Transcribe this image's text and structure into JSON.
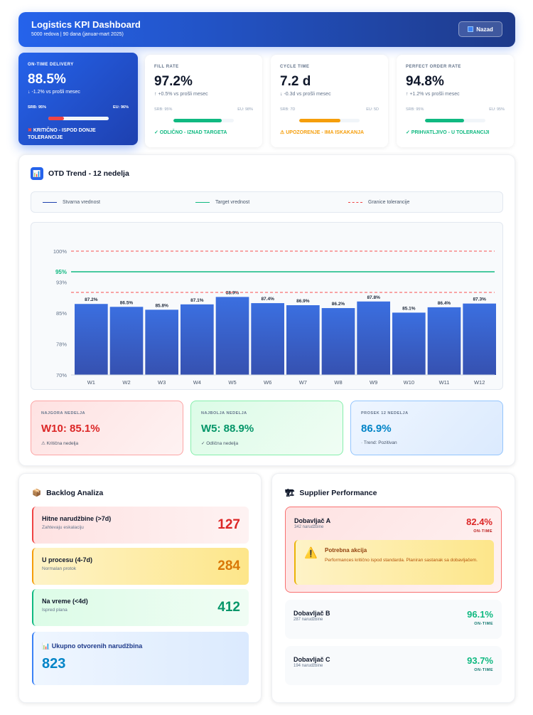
{
  "header": {
    "title": "Logistics KPI Dashboard",
    "subtitle": "5000 redova | 90 dana (januar-mart 2025)",
    "back_label": "Nazad"
  },
  "kpis": [
    {
      "label": "ON-TIME DELIVERY",
      "value": "88.5%",
      "change": "↓ -1.2% vs prošli mesec",
      "srb": "SRB: 95%",
      "eu": "EU: 96%",
      "progress": 0.26,
      "color": "#ef4444",
      "status": "KRITIČNO - ISPOD DONJE TOLERANCIJE",
      "status_icon": "✖"
    },
    {
      "label": "FILL RATE",
      "value": "97.2%",
      "change": "↑ +0.5% vs prošli mesec",
      "srb": "SRB: 95%",
      "eu": "EU: 98%",
      "progress": 0.8,
      "color": "#10b981",
      "status": "✓ ODLIČNO - IZNAD TARGETA"
    },
    {
      "label": "CYCLE TIME",
      "value": "7.2 d",
      "change": "↓ -0.3d vs prošli mesec",
      "srb": "SRB: 7D",
      "eu": "EU: 5D",
      "progress": 0.68,
      "color": "#f59e0b",
      "status": "UPOZORENJE - IMA ISKAKANJA",
      "status_icon": "⚠"
    },
    {
      "label": "PERFECT ORDER RATE",
      "value": "94.8%",
      "change": "↑ +1.2% vs prošli mesec",
      "srb": "SRB: 95%",
      "eu": "EU: 95%",
      "progress": 0.65,
      "color": "#10b981",
      "status": "✓ PRIHVATLJIVO - U TOLERANCIJI"
    }
  ],
  "trend": {
    "title": "OTD Trend - 12 nedelja",
    "icon": "📊",
    "legend": [
      "Stvarna vrednost",
      "Target vrednost",
      "Granice tolerancije"
    ]
  },
  "chart_data": {
    "type": "bar",
    "categories": [
      "W1",
      "W2",
      "W3",
      "W4",
      "W5",
      "W6",
      "W7",
      "W8",
      "W9",
      "W10",
      "W11",
      "W12"
    ],
    "values": [
      87.2,
      86.5,
      85.8,
      87.1,
      88.9,
      87.4,
      86.9,
      86.2,
      87.8,
      85.1,
      86.4,
      87.3
    ],
    "labels": [
      "87.2%",
      "86.5%",
      "85.8%",
      "87.1%",
      "88.9%",
      "87.4%",
      "86.9%",
      "86.2%",
      "87.8%",
      "85.1%",
      "86.4%",
      "87.3%"
    ],
    "ylim": [
      70,
      100
    ],
    "yticks": [
      {
        "v": 100,
        "t": "100%"
      },
      {
        "v": 95,
        "t": "95%"
      },
      {
        "v": 92.5,
        "t": "93%"
      },
      {
        "v": 85,
        "t": "85%"
      },
      {
        "v": 77.5,
        "t": "78%"
      },
      {
        "v": 70,
        "t": "70%"
      }
    ],
    "target": 95,
    "tolerance": [
      90,
      100
    ]
  },
  "summary": [
    {
      "label": "NAJGORA NEDELJA",
      "value": "W10: 85.1%",
      "note": "⚠ Kritična nedelja"
    },
    {
      "label": "NAJBOLJA NEDELJA",
      "value": "W5: 88.9%",
      "note": "✓ Odlična nedelja"
    },
    {
      "label": "PROSEK 12 NEDELJA",
      "value": "86.9%",
      "note": "· Trend: Pozitivan"
    }
  ],
  "backlog": {
    "title": "Backlog Analiza",
    "icon": "📦",
    "items": [
      {
        "title": "Hitne narudžbine (>7d)",
        "sub": "Zahtevaju eskalaciju",
        "value": "127"
      },
      {
        "title": "U procesu (4-7d)",
        "sub": "Normalan protok",
        "value": "284"
      },
      {
        "title": "Na vreme (<4d)",
        "sub": "Ispred plana",
        "value": "412"
      }
    ],
    "total_label": "Ukupno otvorenih narudžbina",
    "total_icon": "📊",
    "total": "823"
  },
  "suppliers": {
    "title": "Supplier Performance",
    "icon": "🏗",
    "items": [
      {
        "name": "Dobavljač A",
        "orders": "342 narudžbine",
        "pct": "82.4%",
        "tag": "ON-TIME"
      },
      {
        "name": "Dobavljač B",
        "orders": "287 narudžbine",
        "pct": "96.1%",
        "tag": "ON-TIME"
      },
      {
        "name": "Dobavljač C",
        "orders": "194 narudžbine",
        "pct": "93.7%",
        "tag": "ON-TIME"
      }
    ],
    "alert_title": "Potrebna akcija",
    "alert_text": "Performances kritično ispod standarda. Planiran sastanak sa dobavljačem."
  }
}
